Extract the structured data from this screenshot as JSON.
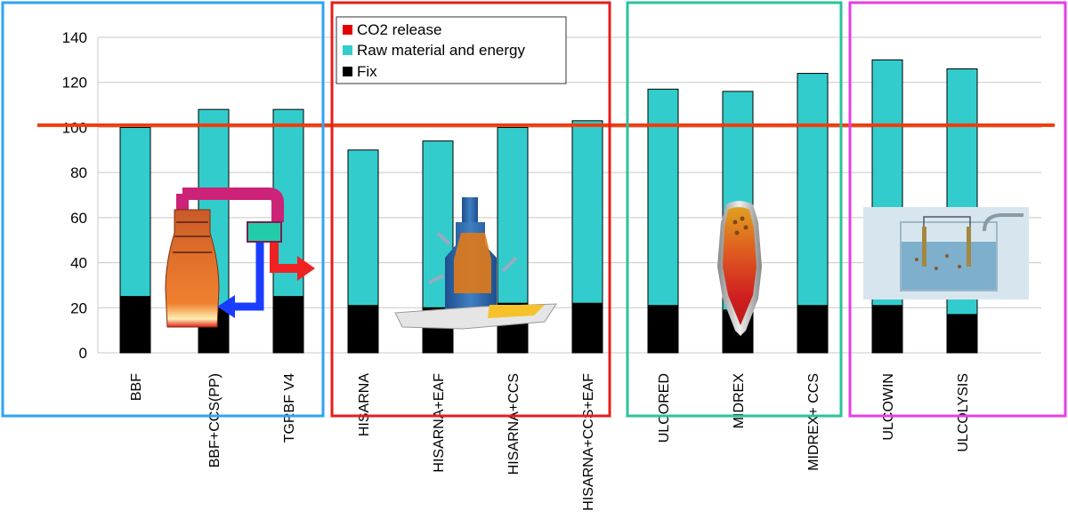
{
  "chart_data": {
    "type": "bar",
    "stacked": true,
    "categories": [
      "BBF",
      "BBF+CCS(PP)",
      "TGRBF V4",
      "HISARNA",
      "HISARNA+EAF",
      "HISARNA+CCS",
      "HISARNA+CCS+EAF",
      "ULCORED",
      "MIDREX",
      "MIDREX+ CCS",
      "ULCOWIN",
      "ULCOLYSIS"
    ],
    "series": [
      {
        "name": "Fix",
        "color": "#000000",
        "values": [
          25,
          20,
          25,
          21,
          20,
          22,
          22,
          21,
          19,
          21,
          21,
          17
        ]
      },
      {
        "name": "Raw material and energy",
        "color": "#33CCCC",
        "values": [
          75,
          88,
          83,
          69,
          74,
          78,
          81,
          96,
          97,
          103,
          109,
          109
        ]
      },
      {
        "name": "CO2 release",
        "color": "#E60000",
        "values": [
          0,
          0,
          0,
          0,
          0,
          0,
          0,
          0,
          0,
          0,
          0,
          0
        ]
      }
    ],
    "legend_order": [
      "CO2 release",
      "Raw material and energy",
      "Fix"
    ],
    "yticks": [
      "0",
      "20",
      "40",
      "60",
      "80",
      "100",
      "120",
      "140"
    ],
    "ylim": [
      0,
      140
    ],
    "reference_line": 101,
    "grid": true,
    "legend_position": "top",
    "group_box_colors": [
      "#2EA3F2",
      "#E81C1C",
      "#2BC39B",
      "#E43FE4"
    ],
    "reference_line_color": "#F03C0C"
  }
}
